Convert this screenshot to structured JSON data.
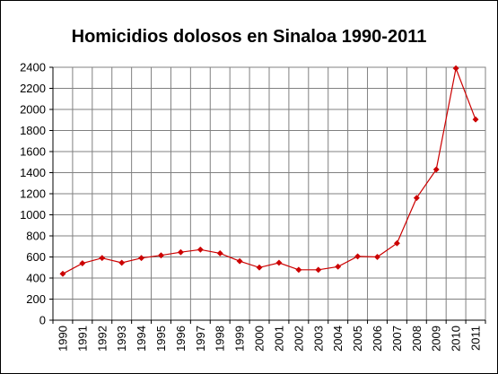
{
  "chart_data": {
    "type": "line",
    "title": "Homicidios dolosos en Sinaloa 1990-2011",
    "xlabel": "",
    "ylabel": "",
    "categories": [
      "1990",
      "1991",
      "1992",
      "1993",
      "1994",
      "1995",
      "1996",
      "1997",
      "1998",
      "1999",
      "2000",
      "2001",
      "2002",
      "2003",
      "2004",
      "2005",
      "2006",
      "2007",
      "2008",
      "2009",
      "2010",
      "2011"
    ],
    "series": [
      {
        "values": [
          440,
          540,
          590,
          545,
          590,
          615,
          645,
          670,
          635,
          560,
          500,
          545,
          478,
          478,
          508,
          605,
          600,
          730,
          1160,
          1430,
          2390,
          1905
        ]
      }
    ],
    "ylim": [
      0,
      2400
    ],
    "yticks": [
      0,
      200,
      400,
      600,
      800,
      1000,
      1200,
      1400,
      1600,
      1800,
      2000,
      2200,
      2400
    ],
    "grid": true,
    "legend": "none",
    "colors": {
      "line": "#cc0000",
      "marker": "#cc0000",
      "grid": "#808080"
    }
  }
}
